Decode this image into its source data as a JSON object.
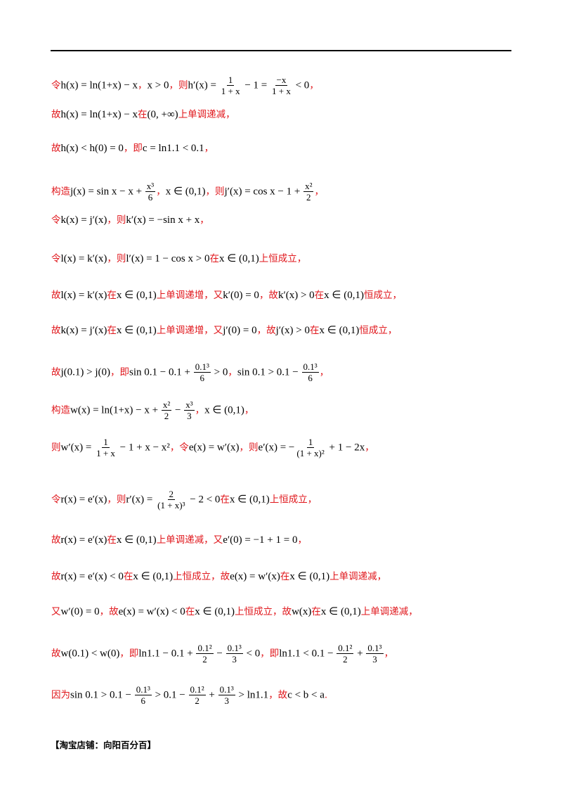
{
  "lines": [
    {
      "segs": [
        {
          "t": "cn",
          "v": "令"
        },
        {
          "t": "m",
          "v": "h(x) = ln(1+x) − x"
        },
        {
          "t": "cn",
          "v": "，"
        },
        {
          "t": "m",
          "v": "x > 0"
        },
        {
          "t": "cn",
          "v": "，则"
        },
        {
          "t": "m",
          "v": "h′(x) = "
        },
        {
          "t": "f",
          "n": "1",
          "d": "1 + x"
        },
        {
          "t": "m",
          "v": " − 1 = "
        },
        {
          "t": "f",
          "n": "−x",
          "d": "1 + x"
        },
        {
          "t": "m",
          "v": " < 0"
        },
        {
          "t": "cn",
          "v": "，"
        }
      ]
    },
    {
      "segs": [
        {
          "t": "cn",
          "v": "故"
        },
        {
          "t": "m",
          "v": "h(x) = ln(1+x) − x"
        },
        {
          "t": "cn",
          "v": "在"
        },
        {
          "t": "m",
          "v": "(0, +∞)"
        },
        {
          "t": "cn",
          "v": "上单调递减，"
        }
      ]
    },
    {
      "segs": [
        {
          "t": "cn",
          "v": "故"
        },
        {
          "t": "m",
          "v": "h(x) < h(0) = 0"
        },
        {
          "t": "cn",
          "v": "，即"
        },
        {
          "t": "m",
          "v": "c = ln1.1 < 0.1"
        },
        {
          "t": "cn",
          "v": "，"
        }
      ]
    },
    {
      "segs": [
        {
          "t": "cn",
          "v": "构造"
        },
        {
          "t": "m",
          "v": "j(x) = sin x − x + "
        },
        {
          "t": "f",
          "n": "x³",
          "d": "6"
        },
        {
          "t": "cn",
          "v": "，"
        },
        {
          "t": "m",
          "v": "x ∈ (0,1)"
        },
        {
          "t": "cn",
          "v": "，则"
        },
        {
          "t": "m",
          "v": "j′(x) = cos x − 1 + "
        },
        {
          "t": "f",
          "n": "x²",
          "d": "2"
        },
        {
          "t": "cn",
          "v": "，"
        }
      ]
    },
    {
      "segs": [
        {
          "t": "cn",
          "v": "令"
        },
        {
          "t": "m",
          "v": "k(x) = j′(x)"
        },
        {
          "t": "cn",
          "v": "，则"
        },
        {
          "t": "m",
          "v": "k′(x) = −sin x + x"
        },
        {
          "t": "cn",
          "v": "，"
        }
      ]
    },
    {
      "segs": [
        {
          "t": "cn",
          "v": "令"
        },
        {
          "t": "m",
          "v": "l(x) = k′(x)"
        },
        {
          "t": "cn",
          "v": "，则"
        },
        {
          "t": "m",
          "v": "l′(x) = 1 − cos x > 0"
        },
        {
          "t": "cn",
          "v": "在"
        },
        {
          "t": "m",
          "v": "x ∈ (0,1)"
        },
        {
          "t": "cn",
          "v": "上恒成立，"
        }
      ]
    },
    {
      "segs": [
        {
          "t": "cn",
          "v": "故"
        },
        {
          "t": "m",
          "v": "l(x) = k′(x)"
        },
        {
          "t": "cn",
          "v": "在"
        },
        {
          "t": "m",
          "v": "x ∈ (0,1)"
        },
        {
          "t": "cn",
          "v": "上单调递增，又"
        },
        {
          "t": "m",
          "v": "k′(0) = 0"
        },
        {
          "t": "cn",
          "v": "，故"
        },
        {
          "t": "m",
          "v": "k′(x) > 0"
        },
        {
          "t": "cn",
          "v": "在"
        },
        {
          "t": "m",
          "v": "x ∈ (0,1)"
        },
        {
          "t": "cn",
          "v": "恒成立，"
        }
      ]
    },
    {
      "segs": [
        {
          "t": "cn",
          "v": "故"
        },
        {
          "t": "m",
          "v": "k(x) = j′(x)"
        },
        {
          "t": "cn",
          "v": "在"
        },
        {
          "t": "m",
          "v": "x ∈ (0,1)"
        },
        {
          "t": "cn",
          "v": "上单调递增，又"
        },
        {
          "t": "m",
          "v": "j′(0) = 0"
        },
        {
          "t": "cn",
          "v": "，故"
        },
        {
          "t": "m",
          "v": "j′(x) > 0"
        },
        {
          "t": "cn",
          "v": "在"
        },
        {
          "t": "m",
          "v": "x ∈ (0,1)"
        },
        {
          "t": "cn",
          "v": "恒成立，"
        }
      ]
    },
    {
      "segs": [
        {
          "t": "cn",
          "v": "故"
        },
        {
          "t": "m",
          "v": "j(0.1) > j(0)"
        },
        {
          "t": "cn",
          "v": "，即"
        },
        {
          "t": "m",
          "v": "sin 0.1 − 0.1 + "
        },
        {
          "t": "f",
          "n": "0.1³",
          "d": "6"
        },
        {
          "t": "m",
          "v": " > 0"
        },
        {
          "t": "cn",
          "v": "，"
        },
        {
          "t": "m",
          "v": "sin 0.1 > 0.1 − "
        },
        {
          "t": "f",
          "n": "0.1³",
          "d": "6"
        },
        {
          "t": "cn",
          "v": "，"
        }
      ]
    },
    {
      "segs": [
        {
          "t": "cn",
          "v": "构造"
        },
        {
          "t": "m",
          "v": "w(x) = ln(1+x) − x + "
        },
        {
          "t": "f",
          "n": "x²",
          "d": "2"
        },
        {
          "t": "m",
          "v": " − "
        },
        {
          "t": "f",
          "n": "x³",
          "d": "3"
        },
        {
          "t": "cn",
          "v": "，"
        },
        {
          "t": "m",
          "v": "x ∈ (0,1)"
        },
        {
          "t": "cn",
          "v": "，"
        }
      ]
    },
    {
      "segs": [
        {
          "t": "cn",
          "v": "则"
        },
        {
          "t": "m",
          "v": "w′(x) = "
        },
        {
          "t": "f",
          "n": "1",
          "d": "1 + x"
        },
        {
          "t": "m",
          "v": " − 1 + x − x²"
        },
        {
          "t": "cn",
          "v": "，令"
        },
        {
          "t": "m",
          "v": "e(x) = w′(x)"
        },
        {
          "t": "cn",
          "v": "，则"
        },
        {
          "t": "m",
          "v": "e′(x) = −"
        },
        {
          "t": "f",
          "n": "1",
          "d": "(1 + x)²"
        },
        {
          "t": "m",
          "v": " + 1 − 2x"
        },
        {
          "t": "cn",
          "v": "，"
        }
      ]
    },
    {
      "segs": [
        {
          "t": "cn",
          "v": "令"
        },
        {
          "t": "m",
          "v": "r(x) = e′(x)"
        },
        {
          "t": "cn",
          "v": "，则"
        },
        {
          "t": "m",
          "v": "r′(x) = "
        },
        {
          "t": "f",
          "n": "2",
          "d": "(1 + x)³"
        },
        {
          "t": "m",
          "v": " − 2 < 0"
        },
        {
          "t": "cn",
          "v": "在"
        },
        {
          "t": "m",
          "v": "x ∈ (0,1)"
        },
        {
          "t": "cn",
          "v": "上恒成立，"
        }
      ]
    },
    {
      "segs": [
        {
          "t": "cn",
          "v": "故"
        },
        {
          "t": "m",
          "v": "r(x) = e′(x)"
        },
        {
          "t": "cn",
          "v": "在"
        },
        {
          "t": "m",
          "v": "x ∈ (0,1)"
        },
        {
          "t": "cn",
          "v": "上单调递减，又"
        },
        {
          "t": "m",
          "v": "e′(0) = −1 + 1 = 0"
        },
        {
          "t": "cn",
          "v": "，"
        }
      ]
    },
    {
      "segs": [
        {
          "t": "cn",
          "v": "故"
        },
        {
          "t": "m",
          "v": "r(x) = e′(x) < 0"
        },
        {
          "t": "cn",
          "v": "在"
        },
        {
          "t": "m",
          "v": "x ∈ (0,1)"
        },
        {
          "t": "cn",
          "v": "上恒成立，故"
        },
        {
          "t": "m",
          "v": "e(x) = w′(x)"
        },
        {
          "t": "cn",
          "v": "在"
        },
        {
          "t": "m",
          "v": "x ∈ (0,1)"
        },
        {
          "t": "cn",
          "v": "上单调递减，"
        }
      ]
    },
    {
      "segs": [
        {
          "t": "cn",
          "v": "又"
        },
        {
          "t": "m",
          "v": "w′(0) = 0"
        },
        {
          "t": "cn",
          "v": "，故"
        },
        {
          "t": "m",
          "v": "e(x) = w′(x) < 0"
        },
        {
          "t": "cn",
          "v": "在"
        },
        {
          "t": "m",
          "v": "x ∈ (0,1)"
        },
        {
          "t": "cn",
          "v": "上恒成立，故"
        },
        {
          "t": "m",
          "v": "w(x)"
        },
        {
          "t": "cn",
          "v": "在"
        },
        {
          "t": "m",
          "v": "x ∈ (0,1)"
        },
        {
          "t": "cn",
          "v": "上单调递减，"
        }
      ]
    },
    {
      "segs": [
        {
          "t": "cn",
          "v": "故"
        },
        {
          "t": "m",
          "v": "w(0.1) < w(0)"
        },
        {
          "t": "cn",
          "v": "，即"
        },
        {
          "t": "m",
          "v": "ln1.1 − 0.1 + "
        },
        {
          "t": "f",
          "n": "0.1²",
          "d": "2"
        },
        {
          "t": "m",
          "v": " − "
        },
        {
          "t": "f",
          "n": "0.1³",
          "d": "3"
        },
        {
          "t": "m",
          "v": " < 0"
        },
        {
          "t": "cn",
          "v": "，即"
        },
        {
          "t": "m",
          "v": "ln1.1 < 0.1 − "
        },
        {
          "t": "f",
          "n": "0.1²",
          "d": "2"
        },
        {
          "t": "m",
          "v": " + "
        },
        {
          "t": "f",
          "n": "0.1³",
          "d": "3"
        },
        {
          "t": "cn",
          "v": "，"
        }
      ]
    },
    {
      "segs": [
        {
          "t": "cn",
          "v": "因为"
        },
        {
          "t": "m",
          "v": "sin 0.1 > 0.1 − "
        },
        {
          "t": "f",
          "n": "0.1³",
          "d": "6"
        },
        {
          "t": "m",
          "v": " > 0.1 − "
        },
        {
          "t": "f",
          "n": "0.1²",
          "d": "2"
        },
        {
          "t": "m",
          "v": " + "
        },
        {
          "t": "f",
          "n": "0.1³",
          "d": "3"
        },
        {
          "t": "m",
          "v": " > ln1.1"
        },
        {
          "t": "cn",
          "v": "，故"
        },
        {
          "t": "m",
          "v": "c < b < a"
        },
        {
          "t": "cn",
          "v": "."
        }
      ]
    }
  ],
  "footer": "【淘宝店铺：向阳百分百】"
}
